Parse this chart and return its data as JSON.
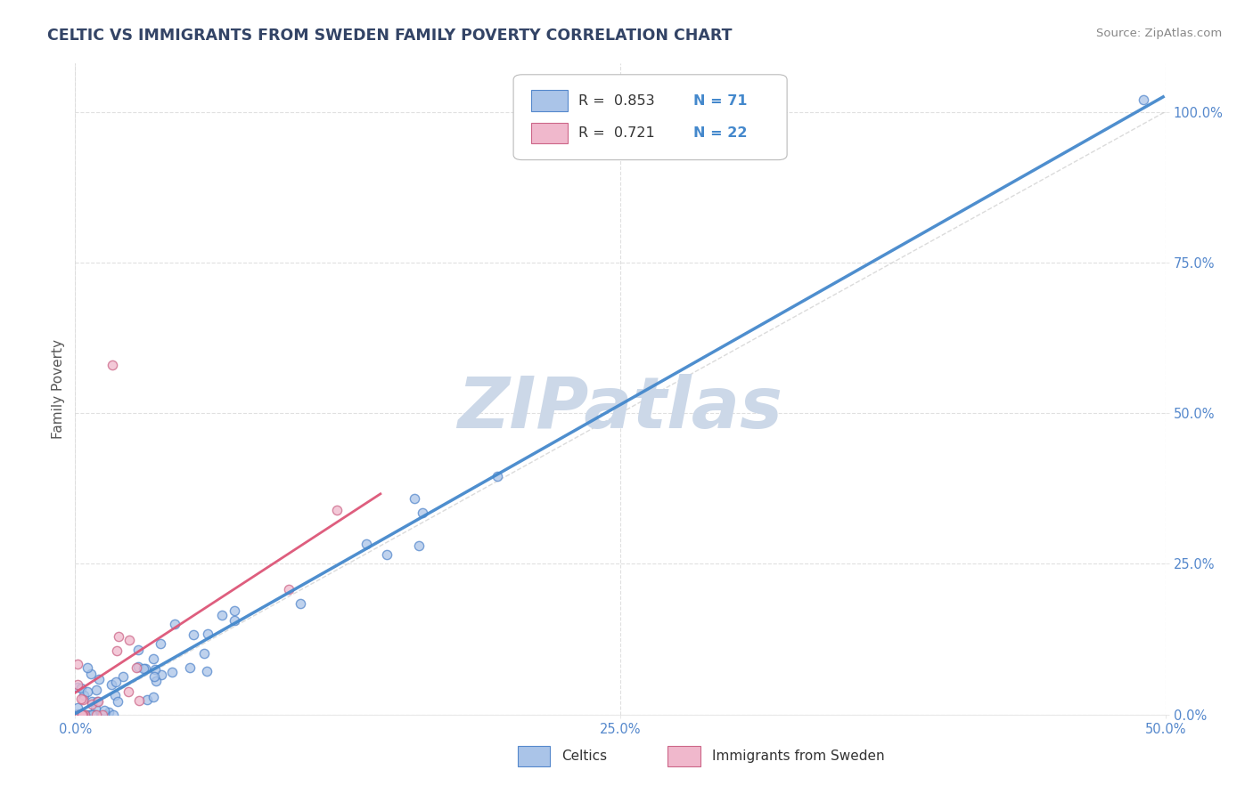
{
  "title": "CELTIC VS IMMIGRANTS FROM SWEDEN FAMILY POVERTY CORRELATION CHART",
  "source_text": "Source: ZipAtlas.com",
  "ylabel": "Family Poverty",
  "xlim": [
    0.0,
    0.5
  ],
  "ylim": [
    0.0,
    1.08
  ],
  "xtick_positions": [
    0.0,
    0.25,
    0.5
  ],
  "xtick_labels": [
    "0.0%",
    "25.0%",
    "50.0%"
  ],
  "ytick_positions": [
    0.0,
    0.25,
    0.5,
    0.75,
    1.0
  ],
  "ytick_labels": [
    "0.0%",
    "25.0%",
    "50.0%",
    "75.0%",
    "100.0%"
  ],
  "background_color": "#ffffff",
  "watermark_text": "ZIPatlas",
  "watermark_color": "#ccd8e8",
  "celtic_color": "#aac4e8",
  "celtic_color_edge": "#5588cc",
  "immigrants_color": "#f0b8cc",
  "immigrants_color_edge": "#cc6688",
  "legend_R1": "0.853",
  "legend_N1": "71",
  "legend_R2": "0.721",
  "legend_N2": "22",
  "grid_color": "#cccccc",
  "trend_celtic_color": "#4488cc",
  "trend_immigrants_color": "#dd5577",
  "diagonal_color": "#cccccc",
  "tick_color_y": "#5588cc",
  "tick_color_x": "#5588cc",
  "title_color": "#334466",
  "source_color": "#888888",
  "ylabel_color": "#555555",
  "legend_text_color": "#333333",
  "legend_N_color": "#4488cc"
}
